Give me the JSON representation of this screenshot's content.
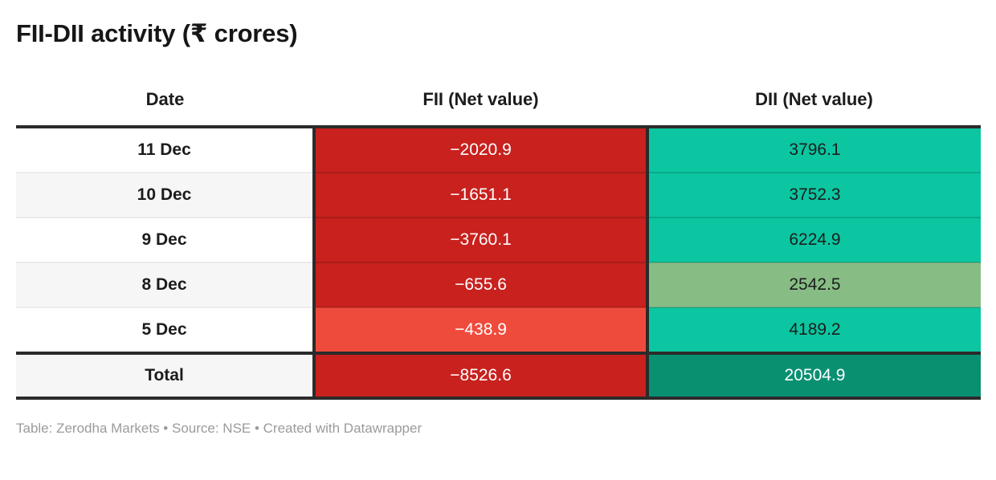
{
  "page": {
    "title": "FII-DII activity (₹ crores)",
    "footer": "Table: Zerodha Markets • Source: NSE • Created with Datawrapper"
  },
  "colors": {
    "negative_red": "#c8211e",
    "negative_red_light": "#ef4b3d",
    "positive_teal": "#0bc6a1",
    "positive_sage": "#87bd85",
    "total_teal_dark": "#099071",
    "row_alt_gray": "#f6f6f6",
    "row_white": "#ffffff",
    "border_dark": "#2b2b2b"
  },
  "chart_data": {
    "type": "table",
    "title": "FII-DII activity (₹ crores)",
    "columns": [
      "Date",
      "FII (Net value)",
      "DII (Net value)"
    ],
    "rows": [
      {
        "date": "11 Dec",
        "fii": -2020.9,
        "dii": 3796.1,
        "fii_display": "−2020.9",
        "dii_display": "3796.1",
        "date_bg": "#ffffff",
        "fii_bg": "#c8211e",
        "fii_fg": "#ffffff",
        "dii_bg": "#0bc6a1",
        "dii_fg": "#1d1d1d"
      },
      {
        "date": "10 Dec",
        "fii": -1651.1,
        "dii": 3752.3,
        "fii_display": "−1651.1",
        "dii_display": "3752.3",
        "date_bg": "#f6f6f6",
        "fii_bg": "#c8211e",
        "fii_fg": "#ffffff",
        "dii_bg": "#0bc6a1",
        "dii_fg": "#1d1d1d"
      },
      {
        "date": "9 Dec",
        "fii": -3760.1,
        "dii": 6224.9,
        "fii_display": "−3760.1",
        "dii_display": "6224.9",
        "date_bg": "#ffffff",
        "fii_bg": "#c8211e",
        "fii_fg": "#ffffff",
        "dii_bg": "#0bc6a1",
        "dii_fg": "#1d1d1d"
      },
      {
        "date": "8 Dec",
        "fii": -655.6,
        "dii": 2542.5,
        "fii_display": "−655.6",
        "dii_display": "2542.5",
        "date_bg": "#f6f6f6",
        "fii_bg": "#c8211e",
        "fii_fg": "#ffffff",
        "dii_bg": "#87bd85",
        "dii_fg": "#1d1d1d"
      },
      {
        "date": "5 Dec",
        "fii": -438.9,
        "dii": 4189.2,
        "fii_display": "−438.9",
        "dii_display": "4189.2",
        "date_bg": "#ffffff",
        "fii_bg": "#ef4b3d",
        "fii_fg": "#ffffff",
        "dii_bg": "#0bc6a1",
        "dii_fg": "#1d1d1d"
      }
    ],
    "total_row": {
      "label": "Total",
      "fii": -8526.6,
      "dii": 20504.9,
      "fii_display": "−8526.6",
      "dii_display": "20504.9",
      "date_bg": "#f6f6f6",
      "fii_bg": "#c8211e",
      "fii_fg": "#ffffff",
      "dii_bg": "#099071",
      "dii_fg": "#ffffff"
    }
  }
}
